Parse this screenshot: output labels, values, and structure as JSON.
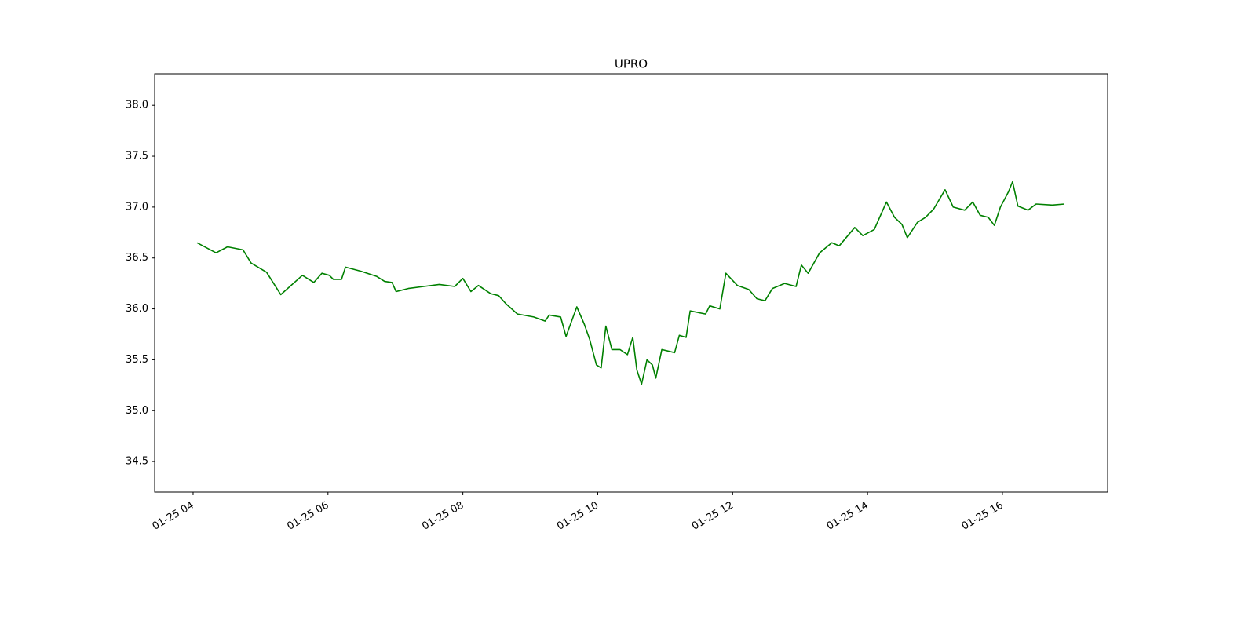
{
  "chart_data": {
    "type": "line",
    "title": "UPRO",
    "x": [
      4.06,
      4.34,
      4.51,
      4.74,
      4.86,
      5.09,
      5.3,
      5.62,
      5.79,
      5.91,
      6.02,
      6.08,
      6.2,
      6.26,
      6.49,
      6.72,
      6.84,
      6.95,
      7.01,
      7.19,
      7.42,
      7.65,
      7.88,
      8.0,
      8.12,
      8.23,
      8.41,
      8.53,
      8.64,
      8.81,
      9.05,
      9.22,
      9.28,
      9.45,
      9.53,
      9.69,
      9.8,
      9.88,
      9.98,
      10.05,
      10.12,
      10.21,
      10.33,
      10.44,
      10.52,
      10.58,
      10.65,
      10.73,
      10.81,
      10.86,
      10.95,
      11.14,
      11.21,
      11.31,
      11.37,
      11.6,
      11.66,
      11.81,
      11.9,
      12.07,
      12.24,
      12.36,
      12.48,
      12.59,
      12.77,
      12.94,
      13.02,
      13.12,
      13.29,
      13.47,
      13.58,
      13.81,
      13.93,
      14.1,
      14.28,
      14.4,
      14.51,
      14.59,
      14.74,
      14.86,
      14.98,
      15.15,
      15.27,
      15.44,
      15.56,
      15.67,
      15.79,
      15.88,
      15.97,
      16.09,
      16.15,
      16.23,
      16.38,
      16.5,
      16.74,
      16.92
    ],
    "series": [
      {
        "name": "UPRO",
        "color": "#008000",
        "values": [
          36.65,
          36.55,
          36.61,
          36.58,
          36.45,
          36.36,
          36.14,
          36.33,
          36.26,
          36.35,
          36.33,
          36.29,
          36.29,
          36.41,
          36.37,
          36.32,
          36.27,
          36.26,
          36.17,
          36.2,
          36.22,
          36.24,
          36.22,
          36.3,
          36.17,
          36.23,
          36.15,
          36.13,
          36.05,
          35.95,
          35.92,
          35.88,
          35.94,
          35.92,
          35.73,
          36.02,
          35.85,
          35.7,
          35.45,
          35.42,
          35.83,
          35.6,
          35.6,
          35.55,
          35.72,
          35.4,
          35.26,
          35.5,
          35.45,
          35.32,
          35.6,
          35.57,
          35.74,
          35.72,
          35.98,
          35.95,
          36.03,
          36.0,
          36.35,
          36.23,
          36.19,
          36.1,
          36.08,
          36.2,
          36.25,
          36.22,
          36.43,
          36.35,
          36.55,
          36.65,
          36.62,
          36.8,
          36.72,
          36.78,
          37.05,
          36.9,
          36.83,
          36.7,
          36.85,
          36.9,
          36.98,
          37.17,
          37.0,
          36.97,
          37.05,
          36.92,
          36.9,
          36.82,
          37.0,
          37.15,
          37.25,
          37.01,
          36.97,
          37.03,
          37.02,
          37.03
        ]
      }
    ],
    "xlim": [
      3.43,
      17.56
    ],
    "ylim": [
      34.2,
      38.31
    ],
    "xticks": [
      {
        "value": 4,
        "label": "01-25 04"
      },
      {
        "value": 6,
        "label": "01-25 06"
      },
      {
        "value": 8,
        "label": "01-25 08"
      },
      {
        "value": 10,
        "label": "01-25 10"
      },
      {
        "value": 12,
        "label": "01-25 12"
      },
      {
        "value": 14,
        "label": "01-25 14"
      },
      {
        "value": 16,
        "label": "01-25 16"
      }
    ],
    "yticks": [
      {
        "value": 34.5,
        "label": "34.5"
      },
      {
        "value": 35,
        "label": "35.0"
      },
      {
        "value": 35.5,
        "label": "35.5"
      },
      {
        "value": 36,
        "label": "36.0"
      },
      {
        "value": 36.5,
        "label": "36.5"
      },
      {
        "value": 37,
        "label": "37.0"
      },
      {
        "value": 37.5,
        "label": "37.5"
      },
      {
        "value": 38,
        "label": "38.0"
      }
    ],
    "grid": false
  }
}
